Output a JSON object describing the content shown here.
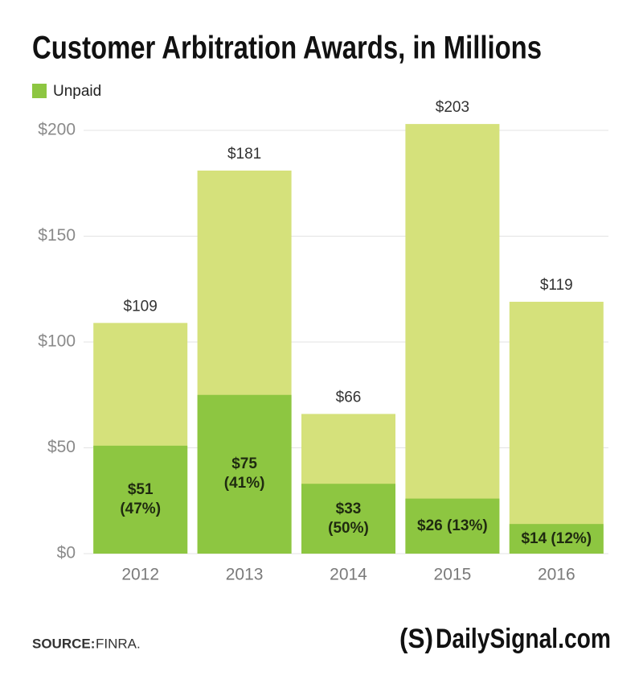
{
  "chart_data": {
    "type": "bar",
    "title": "Customer Arbitration Awards, in Millions",
    "categories": [
      "2012",
      "2013",
      "2014",
      "2015",
      "2016"
    ],
    "totals": {
      "color": "#d5e17b",
      "values": [
        109,
        181,
        66,
        203,
        119
      ],
      "value_labels": [
        "$109",
        "$181",
        "$66",
        "$203",
        "$119"
      ]
    },
    "series": [
      {
        "name": "Unpaid",
        "color": "#8dc641",
        "values": [
          51,
          75,
          33,
          26,
          14
        ],
        "value_labels": [
          "$51\n(47%)",
          "$75\n(41%)",
          "$33\n(50%)",
          "$26 (13%)",
          "$14 (12%)"
        ]
      }
    ],
    "ylim": [
      0,
      210
    ],
    "yticks": [
      {
        "value": 0,
        "label": "$0"
      },
      {
        "value": 50,
        "label": "$50"
      },
      {
        "value": 100,
        "label": "$100"
      },
      {
        "value": 150,
        "label": "$150"
      },
      {
        "value": 200,
        "label": "$200"
      }
    ],
    "grid": true,
    "legend": "top-left",
    "source_label": "SOURCE:",
    "source": "FINRA.",
    "logo_mark": "(S)",
    "logo": "DailySignal.com"
  }
}
